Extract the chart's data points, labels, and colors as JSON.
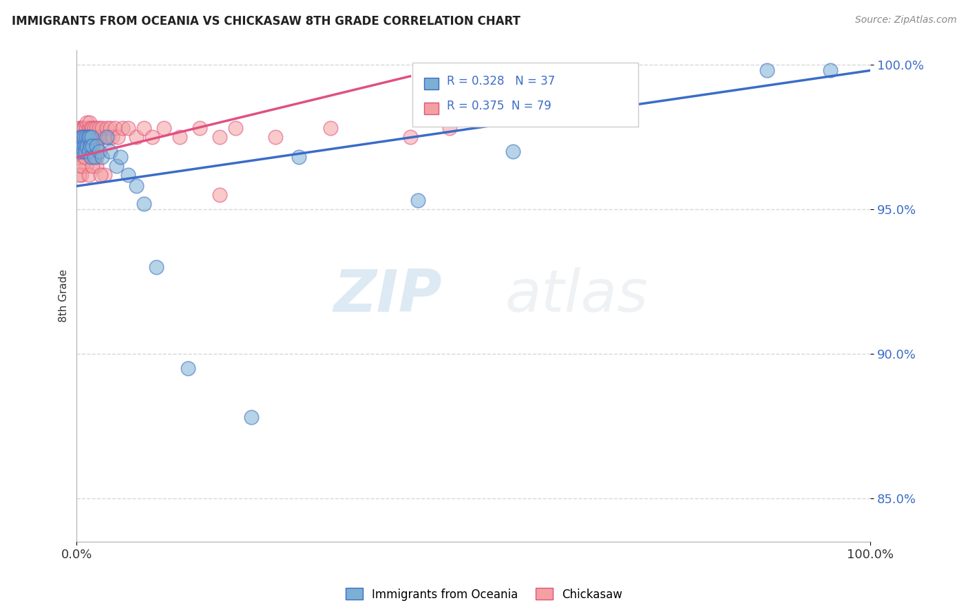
{
  "title": "IMMIGRANTS FROM OCEANIA VS CHICKASAW 8TH GRADE CORRELATION CHART",
  "source_text": "Source: ZipAtlas.com",
  "ylabel": "8th Grade",
  "legend_label1": "Immigrants from Oceania",
  "legend_label2": "Chickasaw",
  "R1": "0.328",
  "N1": "37",
  "R2": "0.375",
  "N2": "79",
  "color_blue": "#7BAFD4",
  "color_pink": "#F4A0A0",
  "line_color_blue": "#3B6CC7",
  "line_color_pink": "#E05080",
  "background_color": "#FFFFFF",
  "watermark_zip": "ZIP",
  "watermark_atlas": "atlas",
  "blue_x": [
    0.0,
    0.003,
    0.005,
    0.006,
    0.007,
    0.008,
    0.009,
    0.01,
    0.011,
    0.012,
    0.013,
    0.014,
    0.015,
    0.016,
    0.017,
    0.018,
    0.019,
    0.02,
    0.022,
    0.025,
    0.028,
    0.032,
    0.038,
    0.042,
    0.05,
    0.055,
    0.065,
    0.075,
    0.085,
    0.1,
    0.14,
    0.22,
    0.28,
    0.55,
    0.87,
    0.95,
    0.43
  ],
  "blue_y": [
    0.972,
    0.97,
    0.975,
    0.972,
    0.975,
    0.97,
    0.975,
    0.972,
    0.97,
    0.975,
    0.972,
    0.975,
    0.97,
    0.975,
    0.972,
    0.968,
    0.975,
    0.972,
    0.968,
    0.972,
    0.97,
    0.968,
    0.975,
    0.97,
    0.965,
    0.968,
    0.962,
    0.958,
    0.952,
    0.93,
    0.895,
    0.878,
    0.968,
    0.97,
    0.998,
    0.998,
    0.953
  ],
  "pink_x": [
    0.0,
    0.001,
    0.002,
    0.003,
    0.003,
    0.004,
    0.005,
    0.005,
    0.006,
    0.007,
    0.007,
    0.008,
    0.008,
    0.009,
    0.009,
    0.01,
    0.01,
    0.011,
    0.012,
    0.012,
    0.013,
    0.013,
    0.014,
    0.015,
    0.015,
    0.016,
    0.016,
    0.017,
    0.017,
    0.018,
    0.019,
    0.02,
    0.02,
    0.021,
    0.022,
    0.023,
    0.025,
    0.025,
    0.027,
    0.028,
    0.03,
    0.032,
    0.035,
    0.038,
    0.04,
    0.042,
    0.045,
    0.048,
    0.052,
    0.058,
    0.065,
    0.075,
    0.085,
    0.095,
    0.11,
    0.13,
    0.155,
    0.18,
    0.2,
    0.25,
    0.32,
    0.42,
    0.47,
    0.015,
    0.025,
    0.035,
    0.012,
    0.008,
    0.006,
    0.004,
    0.002,
    0.003,
    0.007,
    0.01,
    0.015,
    0.02,
    0.025,
    0.03,
    0.18
  ],
  "pink_y": [
    0.975,
    0.972,
    0.975,
    0.978,
    0.972,
    0.975,
    0.978,
    0.972,
    0.975,
    0.978,
    0.972,
    0.975,
    0.978,
    0.972,
    0.978,
    0.975,
    0.972,
    0.975,
    0.978,
    0.972,
    0.975,
    0.98,
    0.975,
    0.978,
    0.972,
    0.975,
    0.98,
    0.975,
    0.972,
    0.978,
    0.975,
    0.972,
    0.978,
    0.975,
    0.978,
    0.975,
    0.978,
    0.972,
    0.975,
    0.978,
    0.975,
    0.978,
    0.975,
    0.978,
    0.975,
    0.978,
    0.975,
    0.978,
    0.975,
    0.978,
    0.978,
    0.975,
    0.978,
    0.975,
    0.978,
    0.975,
    0.978,
    0.975,
    0.978,
    0.975,
    0.978,
    0.975,
    0.978,
    0.968,
    0.965,
    0.962,
    0.965,
    0.968,
    0.962,
    0.965,
    0.968,
    0.962,
    0.965,
    0.968,
    0.962,
    0.965,
    0.968,
    0.962,
    0.955
  ],
  "blue_trend": [
    0.0,
    1.0,
    0.958,
    0.998
  ],
  "pink_trend": [
    0.0,
    0.42,
    0.968,
    0.996
  ],
  "xlim": [
    0.0,
    1.0
  ],
  "ylim": [
    0.835,
    1.005
  ],
  "yticks": [
    0.85,
    0.9,
    0.95,
    1.0
  ],
  "ytick_labels": [
    "85.0%",
    "90.0%",
    "95.0%",
    "100.0%"
  ],
  "xtick_labels": [
    "0.0%",
    "100.0%"
  ]
}
